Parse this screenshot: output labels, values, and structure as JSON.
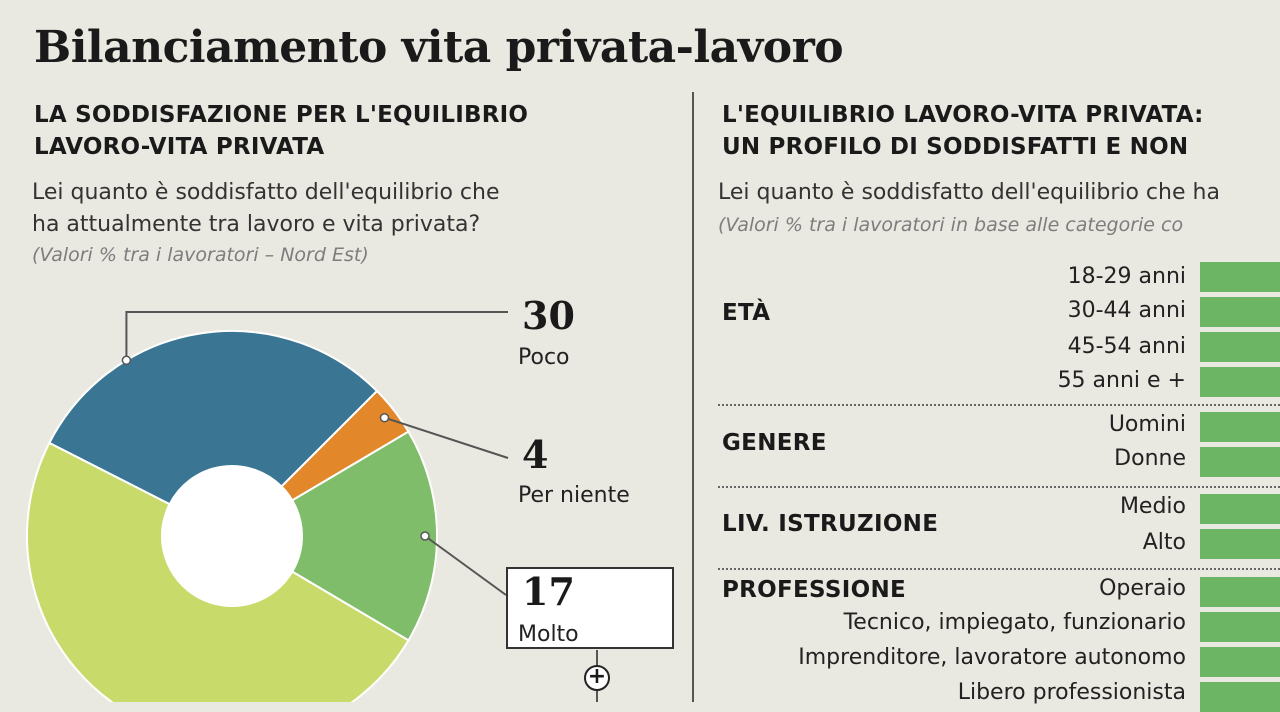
{
  "title": "Bilanciamento vita privata-lavoro",
  "left": {
    "heading_1": "LA SODDISFAZIONE PER L'EQUILIBRIO",
    "heading_2": "LAVORO-VITA PRIVATA",
    "question_1": "Lei quanto è soddisfatto dell'equilibrio che",
    "question_2": "ha attualmente tra lavoro e vita privata?",
    "note": "(Valori % tra i lavoratori – Nord Est)"
  },
  "right": {
    "heading_1": "L'EQUILIBRIO LAVORO-VITA PRIVATA:",
    "heading_2": "UN PROFILO DI SODDISFATTI E NON",
    "question": "Lei quanto è soddisfatto dell'equilibrio che ha",
    "note": "(Valori % tra i lavoratori in base alle categorie co",
    "groups": [
      {
        "category": "ETÀ",
        "items": [
          "18-29 anni",
          "30-44 anni",
          "45-54 anni",
          "55 anni e +"
        ]
      },
      {
        "category": "GENERE",
        "items": [
          "Uomini",
          "Donne"
        ]
      },
      {
        "category": "LIV. ISTRUZIONE",
        "items": [
          "Medio",
          "Alto"
        ]
      },
      {
        "category": "PROFESSIONE",
        "items": [
          "Operaio",
          "Tecnico, impiegato, funzionario",
          "Imprenditore, lavoratore autonomo",
          "Libero professionista"
        ]
      }
    ]
  },
  "chart_data": {
    "type": "pie",
    "donut": true,
    "slices": [
      {
        "label": "Poco",
        "value": 30,
        "color": "#3a7694"
      },
      {
        "label": "Per niente",
        "value": 4,
        "color": "#e2872a"
      },
      {
        "label": "Molto",
        "value": 17,
        "color": "#7fbd6a"
      },
      {
        "label": "",
        "value": 49,
        "color": "#c8db6a"
      }
    ]
  },
  "colors": {
    "background": "#e9e8e1",
    "bar_green": "#6cb564"
  }
}
